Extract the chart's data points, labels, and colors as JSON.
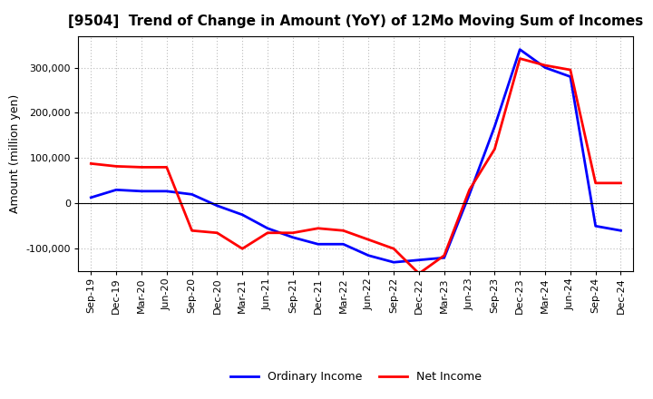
{
  "title": "[9504]  Trend of Change in Amount (YoY) of 12Mo Moving Sum of Incomes",
  "ylabel": "Amount (million yen)",
  "x_labels": [
    "Sep-19",
    "Dec-19",
    "Mar-20",
    "Jun-20",
    "Sep-20",
    "Dec-20",
    "Mar-21",
    "Jun-21",
    "Sep-21",
    "Dec-21",
    "Mar-22",
    "Jun-22",
    "Sep-22",
    "Dec-22",
    "Mar-23",
    "Jun-23",
    "Sep-23",
    "Dec-23",
    "Mar-24",
    "Jun-24",
    "Sep-24",
    "Dec-24"
  ],
  "ordinary_income": [
    13000,
    30000,
    27000,
    27000,
    20000,
    -5000,
    -25000,
    -55000,
    -75000,
    -90000,
    -90000,
    -115000,
    -130000,
    -125000,
    -120000,
    20000,
    170000,
    340000,
    300000,
    280000,
    -50000,
    -60000
  ],
  "net_income": [
    88000,
    82000,
    80000,
    80000,
    -60000,
    -65000,
    -100000,
    -65000,
    -65000,
    -55000,
    -60000,
    -80000,
    -100000,
    -155000,
    -115000,
    30000,
    120000,
    320000,
    305000,
    295000,
    45000,
    45000
  ],
  "ordinary_color": "#0000ff",
  "net_color": "#ff0000",
  "ylim": [
    -150000,
    370000
  ],
  "yticks": [
    -100000,
    0,
    100000,
    200000,
    300000
  ],
  "background_color": "#ffffff",
  "grid_color": "#bbbbbb",
  "title_fontsize": 11,
  "ylabel_fontsize": 9,
  "tick_fontsize": 8,
  "legend_fontsize": 9,
  "linewidth": 2.0
}
